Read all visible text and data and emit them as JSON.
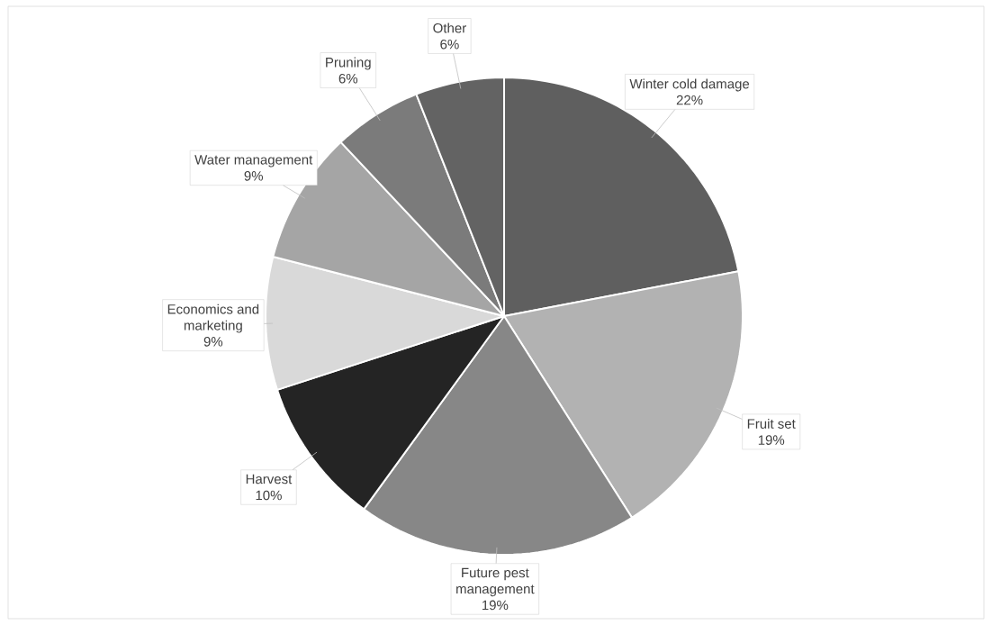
{
  "chart_data": {
    "type": "pie",
    "categories": [
      "Winter cold damage",
      "Fruit set",
      "Future pest management",
      "Harvest",
      "Economics and marketing",
      "Water management",
      "Pruning",
      "Other"
    ],
    "values": [
      22,
      19,
      19,
      10,
      9,
      9,
      6,
      6
    ],
    "value_labels": [
      "22%",
      "19%",
      "19%",
      "10%",
      "9%",
      "9%",
      "6%",
      "6%"
    ],
    "colors": [
      "#5f5f5f",
      "#b2b2b2",
      "#878787",
      "#242424",
      "#d9d9d9",
      "#a5a5a5",
      "#7b7b7b",
      "#636363"
    ]
  }
}
